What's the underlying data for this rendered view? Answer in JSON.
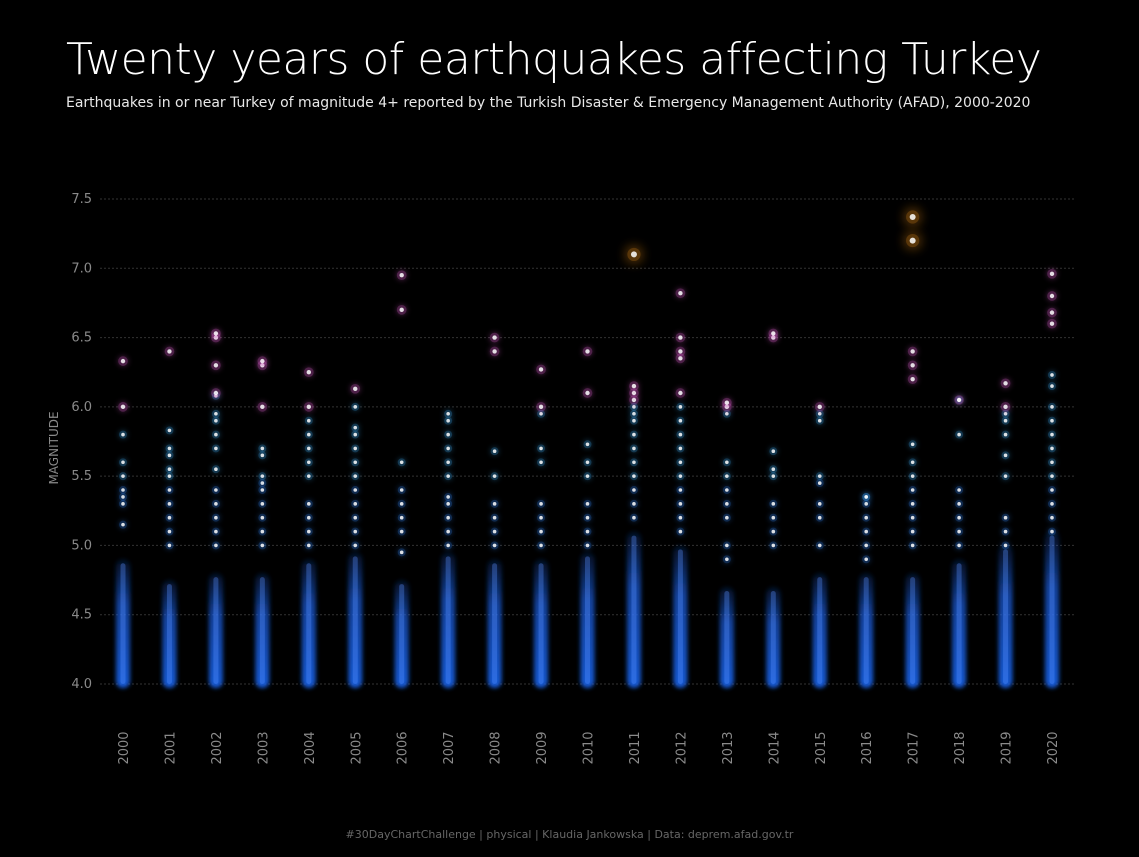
{
  "title": "Twenty years of earthquakes affecting Turkey",
  "subtitle": "Earthquakes in or near Turkey of magnitude 4+ reported by the Turkish Disaster & Emergency Management Authority (AFAD), 2000-2020",
  "footer": "#30DayChartChallenge  |  physical  |  Klaudia Jankowska | Data: deprem.afad.gov.tr",
  "colors": {
    "low": "#1a5fe0",
    "mid": "#3aa3e8",
    "high": "#e05fd0",
    "top": "#ff9a1a",
    "grid": "#333333",
    "axis_text": "#8a8a8a"
  },
  "chart_data": {
    "type": "scatter",
    "title": "Twenty years of earthquakes affecting Turkey",
    "ylabel": "MAGNITUDE",
    "ylim": [
      4.0,
      7.5
    ],
    "yticks": [
      "7.5",
      "7.0",
      "6.5",
      "6.0",
      "5.5",
      "5.0",
      "4.5",
      "4.0"
    ],
    "categories": [
      "2000",
      "2001",
      "2002",
      "2003",
      "2004",
      "2005",
      "2006",
      "2007",
      "2008",
      "2009",
      "2010",
      "2011",
      "2012",
      "2013",
      "2014",
      "2015",
      "2016",
      "2017",
      "2018",
      "2019",
      "2020"
    ],
    "max_of_dense_band": [
      4.9,
      4.75,
      4.8,
      4.8,
      4.9,
      4.95,
      4.75,
      4.95,
      4.9,
      4.9,
      4.95,
      5.1,
      5.0,
      4.7,
      4.7,
      4.8,
      4.8,
      4.8,
      4.9,
      5.0,
      5.1
    ],
    "notable_events": [
      [
        6.0,
        6.33
      ],
      [
        6.4
      ],
      [
        6.1,
        6.3,
        6.5,
        6.53
      ],
      [
        6.0,
        6.3,
        6.33
      ],
      [
        6.0,
        6.25
      ],
      [
        6.13
      ],
      [
        6.7,
        6.95
      ],
      [
        5.95
      ],
      [
        6.4,
        6.5
      ],
      [
        6.0,
        6.27
      ],
      [
        6.1,
        6.4
      ],
      [
        6.05,
        6.1,
        6.15,
        7.1
      ],
      [
        6.1,
        6.35,
        6.4,
        6.5,
        6.82
      ],
      [
        6.0,
        6.03
      ],
      [
        6.5,
        6.53
      ],
      [
        6.0
      ],
      [
        5.35
      ],
      [
        6.2,
        6.3,
        6.4,
        7.2,
        7.37
      ],
      [
        6.05
      ],
      [
        6.0,
        6.17
      ],
      [
        6.6,
        6.68,
        6.8,
        6.96
      ]
    ],
    "mid_events": [
      [
        5.5,
        5.4,
        5.35,
        5.3,
        5.6,
        5.8,
        5.15
      ],
      [
        5.7,
        5.65,
        5.55,
        5.5,
        5.4,
        5.3,
        5.2,
        5.1,
        5.83,
        5.0
      ],
      [
        5.9,
        5.95,
        5.8,
        5.7,
        5.55,
        5.4,
        5.3,
        5.2,
        5.1,
        5.0,
        6.08
      ],
      [
        5.7,
        5.65,
        5.5,
        5.45,
        5.4,
        5.3,
        5.2,
        5.1,
        5.0
      ],
      [
        5.9,
        5.8,
        5.7,
        5.6,
        5.5,
        5.3,
        5.2,
        5.1,
        5.0
      ],
      [
        6.0,
        5.85,
        5.8,
        5.7,
        5.6,
        5.5,
        5.4,
        5.3,
        5.2,
        5.1,
        5.0
      ],
      [
        5.6,
        5.4,
        5.3,
        5.2,
        5.1,
        4.95
      ],
      [
        5.9,
        5.8,
        5.7,
        5.6,
        5.5,
        5.35,
        5.3,
        5.2,
        5.1,
        5.0
      ],
      [
        5.68,
        5.5,
        5.3,
        5.2,
        5.1,
        5.0
      ],
      [
        5.95,
        5.7,
        5.6,
        5.3,
        5.2,
        5.1,
        5.0
      ],
      [
        5.73,
        5.6,
        5.5,
        5.3,
        5.2,
        5.1,
        5.0
      ],
      [
        6.0,
        5.95,
        5.9,
        5.8,
        5.7,
        5.6,
        5.5,
        5.4,
        5.3,
        5.2
      ],
      [
        6.0,
        5.9,
        5.8,
        5.7,
        5.6,
        5.5,
        5.4,
        5.3,
        5.2,
        5.1
      ],
      [
        5.95,
        5.6,
        5.5,
        5.4,
        5.3,
        5.2,
        5.0,
        4.9
      ],
      [
        5.68,
        5.55,
        5.5,
        5.3,
        5.2,
        5.1,
        5.0
      ],
      [
        5.95,
        5.9,
        5.5,
        5.45,
        5.3,
        5.2,
        5.0
      ],
      [
        5.35,
        5.3,
        5.2,
        5.1,
        5.0,
        4.9
      ],
      [
        5.73,
        5.6,
        5.5,
        5.4,
        5.3,
        5.2,
        5.1,
        5.0
      ],
      [
        6.05,
        5.8,
        5.4,
        5.3,
        5.2,
        5.1,
        5.0
      ],
      [
        5.95,
        5.9,
        5.8,
        5.65,
        5.5,
        5.2,
        5.1,
        5.0
      ],
      [
        6.23,
        6.15,
        6.0,
        5.9,
        5.8,
        5.7,
        5.6,
        5.5,
        5.4,
        5.3,
        5.2,
        5.1
      ]
    ]
  }
}
